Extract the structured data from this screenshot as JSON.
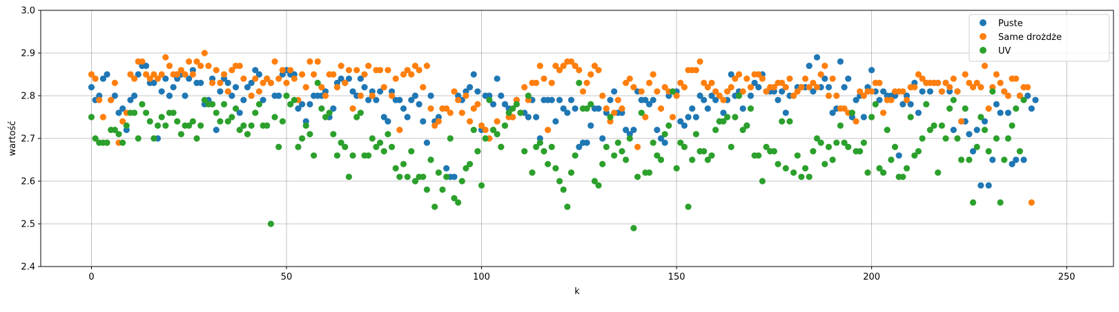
{
  "chart_data": {
    "type": "scatter",
    "xlabel": "k",
    "ylabel": "wartość",
    "xlim": [
      -13,
      262
    ],
    "ylim": [
      2.4,
      3.0
    ],
    "xticks": [
      0,
      50,
      100,
      150,
      200,
      250
    ],
    "yticks": [
      2.4,
      2.5,
      2.6,
      2.7,
      2.8,
      2.9,
      3.0
    ],
    "xtick_labels": [
      "0",
      "50",
      "100",
      "150",
      "200",
      "250"
    ],
    "ytick_labels": [
      "2.4",
      "2.5",
      "2.6",
      "2.7",
      "2.8",
      "2.9",
      "3.0"
    ],
    "grid": true,
    "legend_position": "top-right",
    "series": [
      {
        "name": "Puste",
        "color": "#1f77b4",
        "values": [
          2.82,
          2.79,
          2.8,
          2.84,
          2.85,
          2.79,
          2.8,
          2.76,
          2.77,
          2.72,
          2.79,
          2.8,
          2.85,
          2.87,
          2.87,
          2.83,
          2.83,
          2.7,
          2.81,
          2.84,
          2.8,
          2.82,
          2.84,
          2.85,
          2.8,
          2.84,
          2.86,
          2.83,
          2.83,
          2.78,
          2.79,
          2.84,
          2.72,
          2.81,
          2.84,
          2.83,
          2.8,
          2.82,
          2.76,
          2.79,
          2.82,
          2.83,
          2.86,
          2.85,
          2.79,
          2.84,
          2.83,
          2.8,
          2.8,
          2.85,
          2.86,
          2.85,
          2.85,
          2.77,
          2.78,
          2.74,
          2.78,
          2.8,
          2.8,
          2.8,
          2.81,
          2.75,
          2.77,
          2.83,
          2.84,
          2.83,
          2.84,
          2.81,
          2.8,
          2.84,
          2.82,
          2.79,
          2.81,
          2.79,
          2.81,
          2.75,
          2.74,
          2.81,
          2.79,
          2.79,
          2.77,
          2.75,
          2.79,
          2.8,
          2.78,
          2.74,
          2.69,
          2.8,
          2.74,
          2.75,
          2.77,
          2.63,
          2.61,
          2.61,
          2.8,
          2.79,
          2.81,
          2.82,
          2.85,
          2.81,
          2.72,
          2.8,
          2.8,
          2.78,
          2.84,
          2.8,
          2.78,
          2.77,
          2.75,
          2.79,
          2.76,
          2.76,
          2.75,
          2.79,
          2.75,
          2.7,
          2.79,
          2.79,
          2.79,
          2.74,
          2.79,
          2.77,
          2.76,
          2.79,
          2.77,
          2.68,
          2.69,
          2.69,
          2.73,
          2.77,
          2.77,
          2.7,
          2.76,
          2.79,
          2.81,
          2.76,
          2.76,
          2.72,
          2.71,
          2.72,
          2.81,
          2.79,
          2.79,
          2.78,
          2.79,
          2.72,
          2.7,
          2.69,
          2.8,
          2.81,
          2.81,
          2.74,
          2.73,
          2.75,
          2.77,
          2.75,
          2.8,
          2.79,
          2.77,
          2.8,
          2.79,
          2.74,
          2.76,
          2.79,
          2.85,
          2.8,
          2.81,
          2.77,
          2.73,
          2.8,
          2.83,
          2.82,
          2.85,
          2.81,
          2.81,
          2.81,
          2.79,
          2.81,
          2.76,
          2.8,
          2.8,
          2.82,
          2.82,
          2.82,
          2.87,
          2.81,
          2.89,
          2.82,
          2.84,
          2.82,
          2.76,
          2.77,
          2.88,
          2.82,
          2.84,
          2.75,
          2.79,
          2.8,
          2.75,
          2.82,
          2.86,
          2.81,
          2.79,
          2.81,
          2.8,
          2.8,
          2.8,
          2.66,
          2.78,
          2.8,
          2.78,
          2.83,
          2.76,
          2.81,
          2.83,
          2.81,
          2.83,
          2.83,
          2.81,
          2.83,
          2.81,
          2.72,
          2.81,
          2.74,
          2.74,
          2.71,
          2.67,
          2.72,
          2.59,
          2.74,
          2.59,
          2.65,
          2.78,
          2.76,
          2.81,
          2.76,
          2.64,
          2.65,
          2.8,
          2.65,
          2.8,
          2.77,
          2.79
        ]
      },
      {
        "name": "Same drożdże",
        "color": "#ff7f0e",
        "values": [
          2.85,
          2.84,
          2.79,
          2.75,
          2.69,
          2.79,
          2.83,
          2.69,
          2.74,
          2.76,
          2.85,
          2.84,
          2.88,
          2.88,
          2.85,
          2.84,
          2.85,
          2.84,
          2.85,
          2.89,
          2.87,
          2.85,
          2.85,
          2.86,
          2.85,
          2.88,
          2.85,
          2.88,
          2.87,
          2.9,
          2.87,
          2.83,
          2.86,
          2.83,
          2.85,
          2.81,
          2.86,
          2.87,
          2.87,
          2.84,
          2.71,
          2.8,
          2.84,
          2.81,
          2.83,
          2.84,
          2.83,
          2.88,
          2.84,
          2.86,
          2.83,
          2.86,
          2.84,
          2.79,
          2.85,
          2.82,
          2.88,
          2.85,
          2.88,
          2.82,
          2.8,
          2.85,
          2.85,
          2.82,
          2.87,
          2.83,
          2.86,
          2.77,
          2.86,
          2.8,
          2.85,
          2.87,
          2.8,
          2.86,
          2.86,
          2.82,
          2.86,
          2.8,
          2.84,
          2.72,
          2.85,
          2.86,
          2.85,
          2.87,
          2.86,
          2.82,
          2.87,
          2.77,
          2.73,
          2.74,
          2.77,
          2.77,
          2.76,
          2.81,
          2.79,
          2.76,
          2.8,
          2.74,
          2.77,
          2.78,
          2.73,
          2.72,
          2.7,
          2.72,
          2.74,
          2.68,
          2.73,
          2.75,
          2.75,
          2.79,
          2.76,
          2.82,
          2.79,
          2.83,
          2.83,
          2.87,
          2.84,
          2.72,
          2.83,
          2.87,
          2.86,
          2.87,
          2.88,
          2.88,
          2.87,
          2.86,
          2.81,
          2.83,
          2.85,
          2.87,
          2.86,
          2.8,
          2.77,
          2.74,
          2.76,
          2.79,
          2.77,
          2.83,
          2.84,
          2.82,
          2.68,
          2.81,
          2.75,
          2.83,
          2.85,
          2.81,
          2.77,
          2.82,
          2.81,
          2.75,
          2.8,
          2.83,
          2.82,
          2.86,
          2.86,
          2.86,
          2.88,
          2.83,
          2.82,
          2.83,
          2.81,
          2.8,
          2.79,
          2.81,
          2.82,
          2.84,
          2.85,
          2.81,
          2.84,
          2.82,
          2.85,
          2.85,
          2.84,
          2.81,
          2.82,
          2.82,
          2.83,
          2.83,
          2.82,
          2.84,
          2.8,
          2.81,
          2.82,
          2.84,
          2.82,
          2.83,
          2.82,
          2.85,
          2.87,
          2.8,
          2.84,
          2.8,
          2.77,
          2.77,
          2.76,
          2.76,
          2.74,
          2.81,
          2.8,
          2.81,
          2.81,
          2.83,
          2.83,
          2.76,
          2.79,
          2.79,
          2.81,
          2.81,
          2.81,
          2.79,
          2.82,
          2.82,
          2.85,
          2.84,
          2.83,
          2.83,
          2.83,
          2.83,
          2.81,
          2.83,
          2.82,
          2.84,
          2.81,
          2.74,
          2.85,
          2.83,
          2.82,
          2.83,
          2.82,
          2.87,
          2.77,
          2.82,
          2.85,
          2.83,
          2.81,
          2.8,
          2.84,
          2.84,
          2.8,
          2.82,
          2.82,
          2.55
        ]
      },
      {
        "name": "UV",
        "color": "#2ca02c",
        "values": [
          2.75,
          2.7,
          2.69,
          2.69,
          2.69,
          2.72,
          2.72,
          2.71,
          2.69,
          2.73,
          2.76,
          2.76,
          2.7,
          2.78,
          2.76,
          2.74,
          2.7,
          2.73,
          2.75,
          2.73,
          2.76,
          2.76,
          2.74,
          2.71,
          2.73,
          2.73,
          2.74,
          2.7,
          2.73,
          2.79,
          2.78,
          2.78,
          2.76,
          2.74,
          2.78,
          2.74,
          2.75,
          2.77,
          2.72,
          2.73,
          2.71,
          2.73,
          2.76,
          2.78,
          2.73,
          2.73,
          2.5,
          2.75,
          2.68,
          2.74,
          2.8,
          2.78,
          2.79,
          2.68,
          2.7,
          2.73,
          2.71,
          2.66,
          2.83,
          2.77,
          2.75,
          2.76,
          2.71,
          2.66,
          2.69,
          2.68,
          2.61,
          2.66,
          2.75,
          2.76,
          2.66,
          2.66,
          2.7,
          2.68,
          2.69,
          2.67,
          2.71,
          2.68,
          2.63,
          2.61,
          2.64,
          2.61,
          2.67,
          2.6,
          2.61,
          2.61,
          2.58,
          2.65,
          2.54,
          2.62,
          2.58,
          2.61,
          2.7,
          2.56,
          2.55,
          2.6,
          2.63,
          2.64,
          2.72,
          2.67,
          2.59,
          2.7,
          2.79,
          2.72,
          2.71,
          2.68,
          2.73,
          2.76,
          2.77,
          2.78,
          2.76,
          2.67,
          2.8,
          2.62,
          2.68,
          2.69,
          2.67,
          2.64,
          2.68,
          2.63,
          2.6,
          2.58,
          2.54,
          2.62,
          2.66,
          2.83,
          2.77,
          2.77,
          2.78,
          2.6,
          2.59,
          2.64,
          2.68,
          2.75,
          2.66,
          2.69,
          2.67,
          2.65,
          2.7,
          2.49,
          2.61,
          2.76,
          2.62,
          2.62,
          2.69,
          2.66,
          2.65,
          2.71,
          2.73,
          2.81,
          2.63,
          2.69,
          2.68,
          2.54,
          2.65,
          2.71,
          2.67,
          2.67,
          2.65,
          2.66,
          2.72,
          2.74,
          2.74,
          2.75,
          2.68,
          2.75,
          2.8,
          2.72,
          2.73,
          2.77,
          2.66,
          2.66,
          2.6,
          2.68,
          2.67,
          2.67,
          2.64,
          2.74,
          2.63,
          2.74,
          2.62,
          2.66,
          2.61,
          2.63,
          2.61,
          2.67,
          2.7,
          2.69,
          2.64,
          2.68,
          2.65,
          2.69,
          2.73,
          2.69,
          2.68,
          2.76,
          2.67,
          2.67,
          2.69,
          2.62,
          2.75,
          2.78,
          2.63,
          2.62,
          2.72,
          2.65,
          2.68,
          2.61,
          2.61,
          2.63,
          2.75,
          2.66,
          2.67,
          2.7,
          2.78,
          2.72,
          2.73,
          2.62,
          2.73,
          2.7,
          2.77,
          2.79,
          2.7,
          2.65,
          2.77,
          2.65,
          2.55,
          2.68,
          2.75,
          2.72,
          2.67,
          2.81,
          2.7,
          2.55,
          2.65,
          2.7,
          2.73,
          2.77,
          2.67,
          2.79
        ]
      }
    ]
  }
}
